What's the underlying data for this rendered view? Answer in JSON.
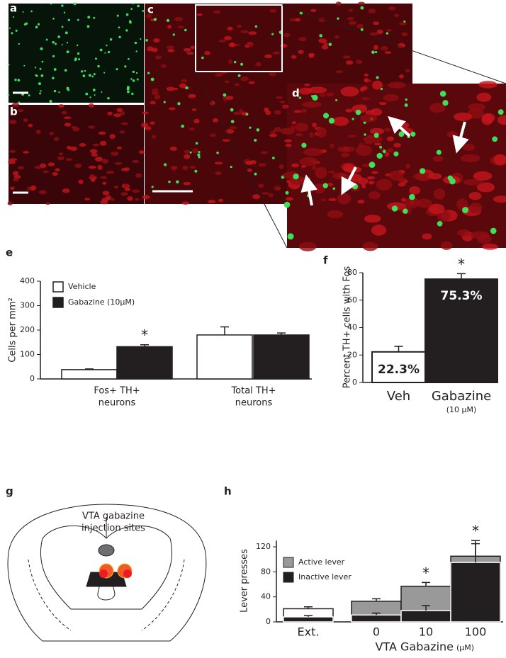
{
  "panel_labels": [
    "a",
    "b",
    "c",
    "d",
    "e",
    "f",
    "g",
    "h"
  ],
  "diagram": {
    "caption": [
      "VTA gabazine",
      "injection sites"
    ]
  },
  "chart_data": [
    {
      "type": "grouped-bar",
      "ylabel": "Cells per mm²",
      "categories": [
        [
          "Fos+ TH+",
          "neurons"
        ],
        [
          "Total TH+",
          "neurons"
        ]
      ],
      "series": [
        {
          "name": "Vehicle",
          "color": "#ffffff",
          "values": [
            38,
            180
          ],
          "errors": [
            3,
            33
          ]
        },
        {
          "name": "Gabazine (10µM)",
          "color": "#231f20",
          "values": [
            132,
            180
          ],
          "errors": [
            8,
            8
          ]
        }
      ],
      "ylim": [
        0,
        400
      ],
      "yticks": [
        0,
        100,
        200,
        300,
        400
      ],
      "annotations": [
        "*"
      ]
    },
    {
      "type": "bar",
      "ylabel": "Percent TH+ cells with Fos",
      "categories": [
        "Veh",
        "Gabazine"
      ],
      "dose_label": "(10 µM)",
      "values": [
        22.3,
        75.3
      ],
      "value_labels": [
        "22.3%",
        "75.3%"
      ],
      "errors": [
        4,
        4
      ],
      "colors": [
        "#ffffff",
        "#231f20"
      ],
      "ylim": [
        0,
        80
      ],
      "yticks": [
        0,
        20,
        40,
        60,
        80
      ],
      "annotations": [
        "*"
      ]
    },
    {
      "type": "overlap-bar",
      "ylabel": "Lever presses",
      "xlabel": "VTA Gabazine",
      "xlabel_unit": "(µM)",
      "categories": [
        "Ext.",
        "0",
        "10",
        "100"
      ],
      "series": [
        {
          "name": "Active lever",
          "color": "#999999",
          "bar_colors": [
            "#ffffff",
            "#999999",
            "#999999",
            "#999999"
          ],
          "values": [
            21,
            33,
            57,
            105
          ],
          "errors": [
            3,
            4,
            6,
            25
          ]
        },
        {
          "name": "Inactive lever",
          "color": "#231f20",
          "values": [
            8,
            11,
            18,
            95
          ],
          "errors": [
            2,
            3,
            8,
            30
          ]
        }
      ],
      "ylim": [
        0,
        130
      ],
      "yticks": [
        0,
        40,
        80,
        120
      ],
      "annotations": [
        "*",
        "*"
      ]
    }
  ]
}
